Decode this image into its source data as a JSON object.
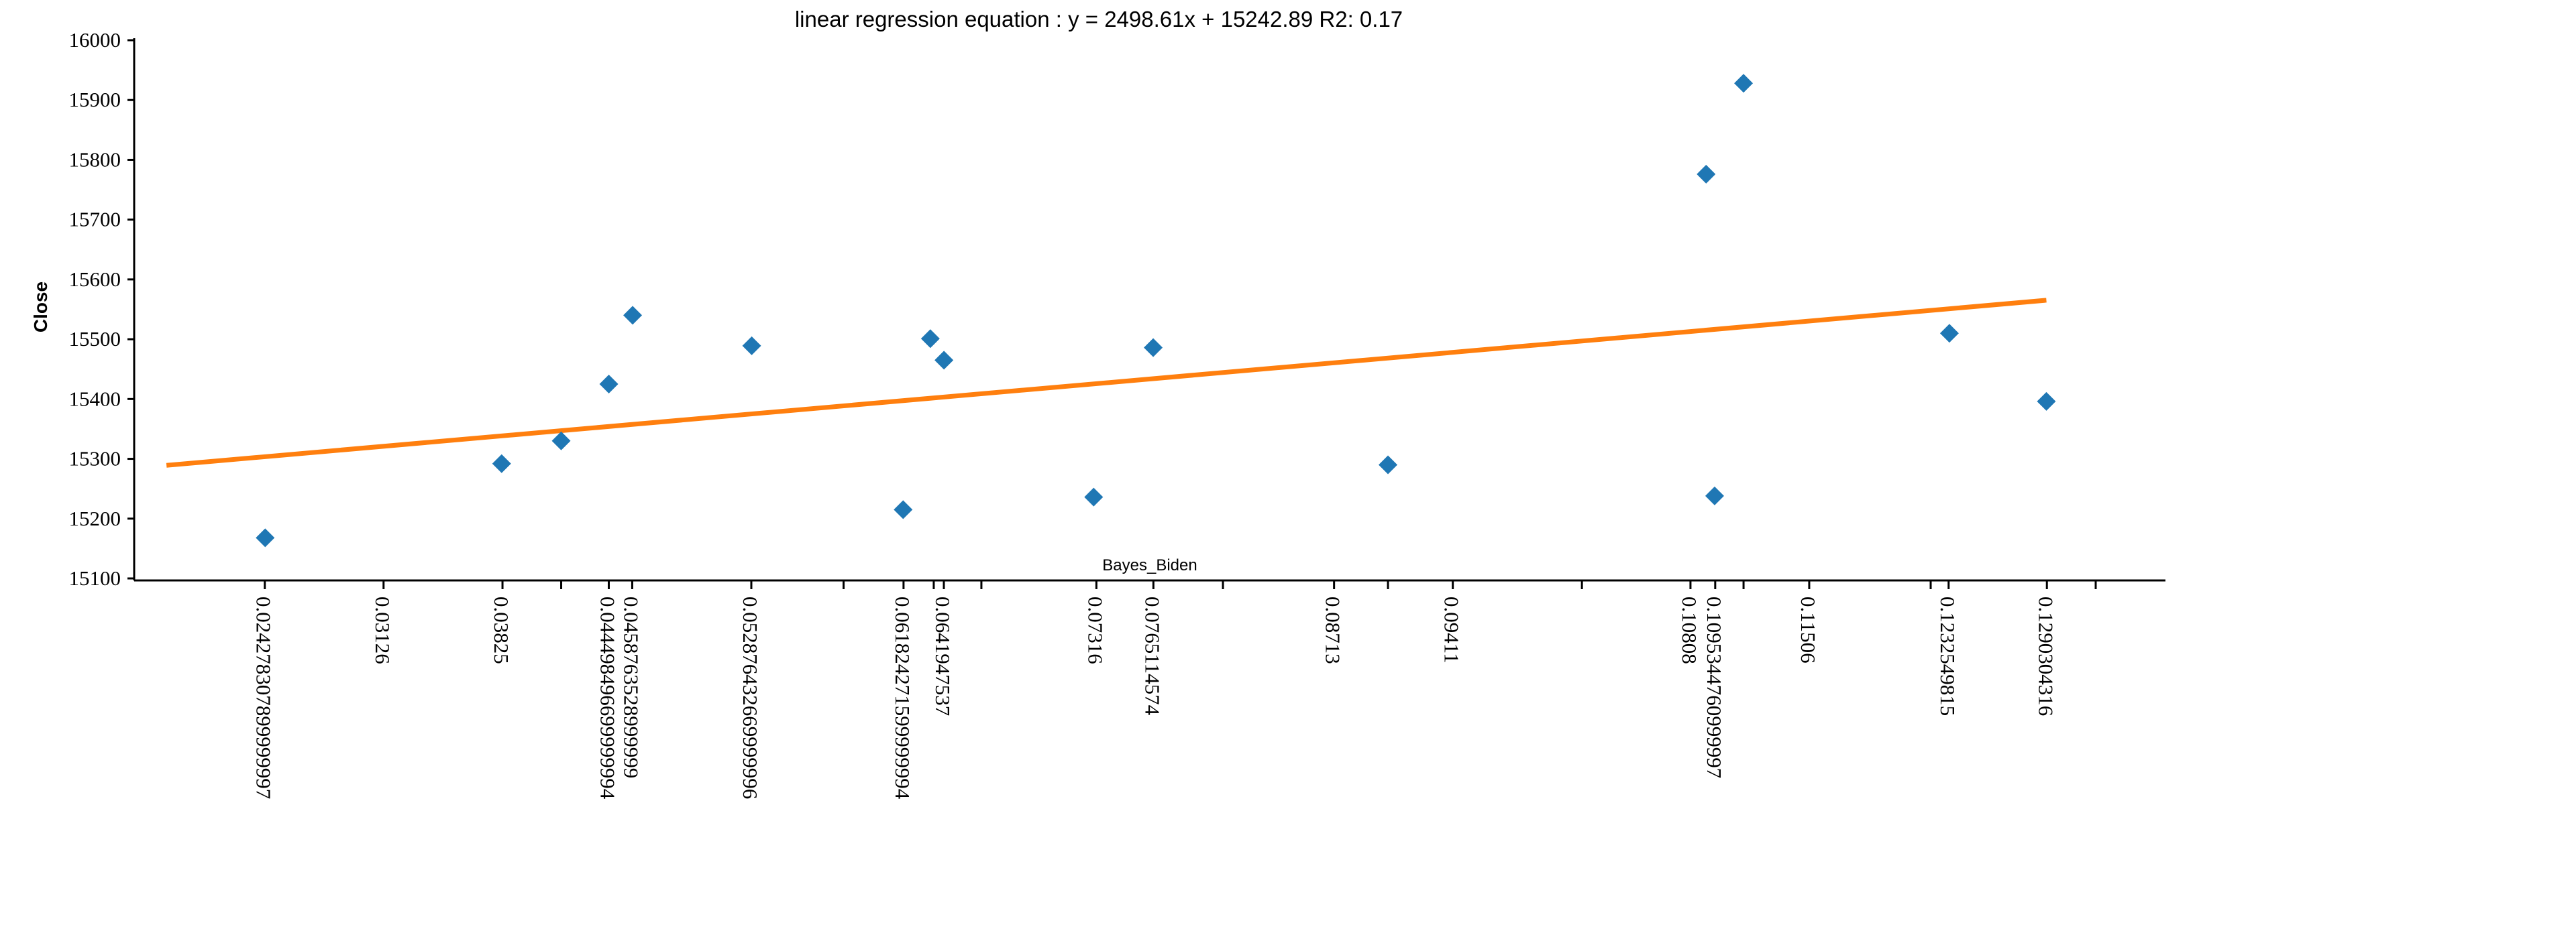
{
  "chart_data": {
    "type": "scatter",
    "title": "linear regression equation : y = 2498.61x + 15242.89 R2: 0.17",
    "xlabel": "Bayes_Biden",
    "ylabel": "Close",
    "ylim": [
      15100,
      16000
    ],
    "xlim": [
      0.0166,
      0.136
    ],
    "y_ticks": [
      15100,
      15200,
      15300,
      15400,
      15500,
      15600,
      15700,
      15800,
      15900,
      16000
    ],
    "x_ticks": [
      {
        "value": 0.024278307899999997,
        "label": "0.024278307899999997"
      },
      {
        "value": 0.03126,
        "label": "0.03126"
      },
      {
        "value": 0.03825,
        "label": "0.03825"
      },
      {
        "value": 0.0417,
        "label": ""
      },
      {
        "value": 0.044498496699999994,
        "label": "0.044498496699999994"
      },
      {
        "value": 0.0458763528999999,
        "label": "0.0458763528999999"
      },
      {
        "value": 0.052876432669999994,
        "label": "0.052876432669999996"
      },
      {
        "value": 0.0583,
        "label": ""
      },
      {
        "value": 0.061824271599999994,
        "label": "0.061824271599999994"
      },
      {
        "value": 0.0636,
        "label": ""
      },
      {
        "value": 0.0641947537,
        "label": "0.0641947537"
      },
      {
        "value": 0.0664,
        "label": ""
      },
      {
        "value": 0.07316,
        "label": "0.07316"
      },
      {
        "value": 0.0765114574,
        "label": "0.0765114574"
      },
      {
        "value": 0.0806,
        "label": ""
      },
      {
        "value": 0.08713,
        "label": "0.08713"
      },
      {
        "value": 0.0903,
        "label": ""
      },
      {
        "value": 0.09411,
        "label": "0.09411"
      },
      {
        "value": 0.1017,
        "label": ""
      },
      {
        "value": 0.10808,
        "label": "0.10808"
      },
      {
        "value": 0.1095344760999997,
        "label": "0.1095344760999997"
      },
      {
        "value": 0.1112,
        "label": ""
      },
      {
        "value": 0.11506,
        "label": "0.11506"
      },
      {
        "value": 0.1222,
        "label": ""
      },
      {
        "value": 0.1232549815,
        "label": "0.1232549815"
      },
      {
        "value": 0.1290304316,
        "label": "0.1290304316"
      },
      {
        "value": 0.1319,
        "label": ""
      }
    ],
    "points": [
      {
        "x": 0.0243,
        "y": 15168
      },
      {
        "x": 0.0382,
        "y": 15292
      },
      {
        "x": 0.0417,
        "y": 15330
      },
      {
        "x": 0.0445,
        "y": 15425
      },
      {
        "x": 0.0459,
        "y": 15540
      },
      {
        "x": 0.0529,
        "y": 15489
      },
      {
        "x": 0.0618,
        "y": 15215
      },
      {
        "x": 0.0634,
        "y": 15501
      },
      {
        "x": 0.0642,
        "y": 15465
      },
      {
        "x": 0.073,
        "y": 15236
      },
      {
        "x": 0.0765,
        "y": 15486
      },
      {
        "x": 0.0903,
        "y": 15290
      },
      {
        "x": 0.109,
        "y": 15776
      },
      {
        "x": 0.1095,
        "y": 15238
      },
      {
        "x": 0.1112,
        "y": 15928
      },
      {
        "x": 0.1233,
        "y": 15510
      },
      {
        "x": 0.129,
        "y": 15396
      }
    ],
    "regression": {
      "slope": 2498.61,
      "intercept": 15242.89,
      "x_range": [
        0.0185,
        0.129
      ]
    },
    "colors": {
      "points": "#1f77b4",
      "line": "#ff7f0e"
    }
  }
}
